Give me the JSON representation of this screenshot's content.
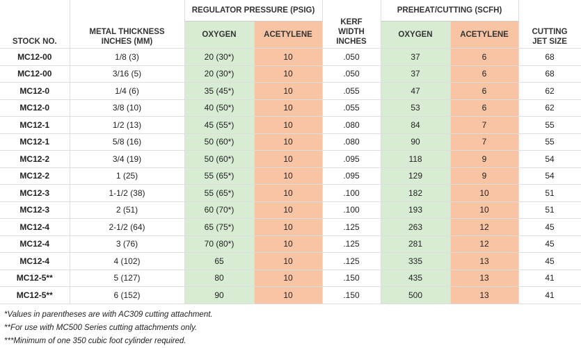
{
  "headers": {
    "stock_no": [
      "STOCK NO."
    ],
    "metal_thickness": [
      "METAL THICKNESS",
      "INCHES (MM)"
    ],
    "regulator_pressure": {
      "title": "REGULATOR PRESSURE (PSIG)",
      "oxygen": "OXYGEN",
      "acetylene": "ACETYLENE"
    },
    "kerf_width": [
      "KERF",
      "WIDTH",
      "INCHES"
    ],
    "preheat_cutting": {
      "title": "PREHEAT/CUTTING (SCFH)",
      "oxygen": "OXYGEN",
      "acetylene": "ACETYLENE"
    },
    "cutting_jet_size": [
      "CUTTING",
      "JET SIZE"
    ]
  },
  "rows": [
    [
      "MC12-00",
      "1/8 (3)",
      "20 (30*)",
      "10",
      ".050",
      "37",
      "6",
      "68"
    ],
    [
      "MC12-00",
      "3/16 (5)",
      "20 (30*)",
      "10",
      ".050",
      "37",
      "6",
      "68"
    ],
    [
      "MC12-0",
      "1/4 (6)",
      "35 (45*)",
      "10",
      ".055",
      "47",
      "6",
      "62"
    ],
    [
      "MC12-0",
      "3/8 (10)",
      "40 (50*)",
      "10",
      ".055",
      "53",
      "6",
      "62"
    ],
    [
      "MC12-1",
      "1/2 (13)",
      "45 (55*)",
      "10",
      ".080",
      "84",
      "7",
      "55"
    ],
    [
      "MC12-1",
      "5/8 (16)",
      "50 (60*)",
      "10",
      ".080",
      "90",
      "7",
      "55"
    ],
    [
      "MC12-2",
      "3/4 (19)",
      "50 (60*)",
      "10",
      ".095",
      "118",
      "9",
      "54"
    ],
    [
      "MC12-2",
      "1 (25)",
      "55 (65*)",
      "10",
      ".095",
      "129",
      "9",
      "54"
    ],
    [
      "MC12-3",
      "1-1/2 (38)",
      "55 (65*)",
      "10",
      ".100",
      "182",
      "10",
      "51"
    ],
    [
      "MC12-3",
      "2 (51)",
      "60 (70*)",
      "10",
      ".100",
      "193",
      "10",
      "51"
    ],
    [
      "MC12-4",
      "2-1/2 (64)",
      "65 (75*)",
      "10",
      ".125",
      "263",
      "12",
      "45"
    ],
    [
      "MC12-4",
      "3 (76)",
      "70 (80*)",
      "10",
      ".125",
      "281",
      "12",
      "45"
    ],
    [
      "MC12-4",
      "4 (102)",
      "65",
      "10",
      ".125",
      "335",
      "13",
      "45"
    ],
    [
      "MC12-5**",
      "5 (127)",
      "80",
      "10",
      ".150",
      "435",
      "13",
      "41"
    ],
    [
      "MC12-5**",
      "6 (152)",
      "90",
      "10",
      ".150",
      "500",
      "13",
      "41"
    ]
  ],
  "footnotes": [
    "*Values in parentheses are with AC309 cutting attachment.",
    "**For use with MC500 Series cutting attachments only.",
    "***Minimum of one 350 cubic foot cylinder required."
  ]
}
